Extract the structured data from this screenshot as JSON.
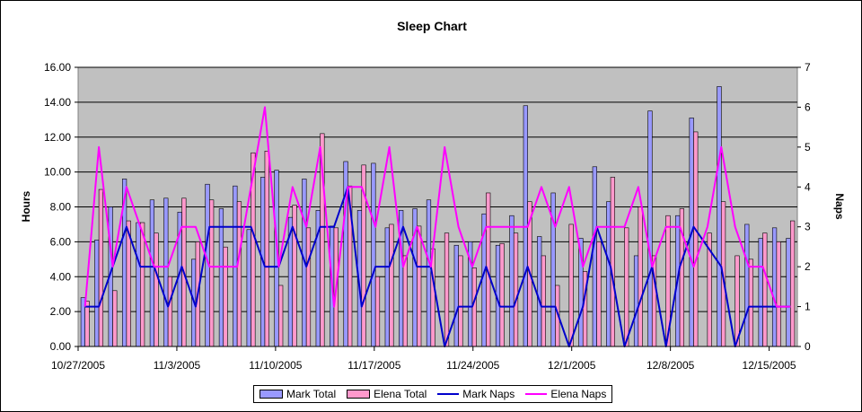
{
  "chart_data": {
    "type": "bar",
    "title": "Sleep Chart",
    "ylabel": "Hours",
    "y2label": "Naps",
    "ylim": [
      0,
      16
    ],
    "y2lim": [
      0,
      7
    ],
    "y_ticks": [
      "0.00",
      "2.00",
      "4.00",
      "6.00",
      "8.00",
      "10.00",
      "12.00",
      "14.00",
      "16.00"
    ],
    "y2_ticks": [
      "0",
      "1",
      "2",
      "3",
      "4",
      "5",
      "6",
      "7"
    ],
    "x_start": "10/27/2005",
    "x_end": "12/17/2005",
    "x_ticks": [
      "10/27/2005",
      "11/3/2005",
      "11/10/2005",
      "11/17/2005",
      "11/24/2005",
      "12/1/2005",
      "12/8/2005",
      "12/15/2005"
    ],
    "grid": true,
    "legend_position": "bottom",
    "colors": {
      "plot_bg": "#c0c0c0",
      "mark_total": "#9999ff",
      "elena_total": "#ff99cc",
      "mark_naps": "#0000cc",
      "elena_naps": "#ff00ff"
    },
    "series": [
      {
        "name": "Mark Total",
        "kind": "bar",
        "axis": "left",
        "values": [
          2.8,
          6.1,
          8.0,
          9.6,
          7.1,
          8.4,
          8.5,
          7.7,
          5.0,
          9.3,
          7.9,
          9.2,
          6.7,
          9.7,
          10.1,
          7.4,
          9.6,
          7.8,
          6.9,
          10.6,
          7.8,
          10.5,
          6.8,
          7.8,
          7.9,
          8.4,
          null,
          5.8,
          6.0,
          7.6,
          5.8,
          7.5,
          13.8,
          6.3,
          8.8,
          null,
          6.2,
          10.3,
          8.3,
          null,
          5.2,
          13.5,
          null,
          7.5,
          13.1,
          null,
          14.9,
          null,
          7.0,
          6.2,
          6.8,
          6.2
        ]
      },
      {
        "name": "Elena Total",
        "kind": "bar",
        "axis": "left",
        "values": [
          2.6,
          9.0,
          3.2,
          7.2,
          7.1,
          6.5,
          4.0,
          8.5,
          6.0,
          8.4,
          5.7,
          8.3,
          11.1,
          11.2,
          3.5,
          8.1,
          6.8,
          12.2,
          6.8,
          9.2,
          10.4,
          4.0,
          7.0,
          5.2,
          6.9,
          5.6,
          6.5,
          5.2,
          4.5,
          8.8,
          5.9,
          6.5,
          8.3,
          5.2,
          3.5,
          7.0,
          4.3,
          6.0,
          9.7,
          6.8,
          8.0,
          5.2,
          7.5,
          7.9,
          12.3,
          6.5,
          8.3,
          5.2,
          5.0,
          6.5,
          6.0,
          7.2
        ]
      },
      {
        "name": "Mark Naps",
        "kind": "line",
        "axis": "right",
        "values": [
          1,
          1,
          2,
          3,
          2,
          2,
          1,
          2,
          1,
          3,
          3,
          3,
          3,
          2,
          2,
          3,
          2,
          3,
          3,
          4,
          1,
          2,
          2,
          3,
          2,
          2,
          0,
          1,
          1,
          2,
          1,
          1,
          2,
          1,
          1,
          0,
          1,
          3,
          2,
          0,
          1,
          2,
          0,
          2,
          3,
          null,
          2,
          0,
          1,
          1,
          1,
          1
        ]
      },
      {
        "name": "Elena Naps",
        "kind": "line",
        "axis": "right",
        "values": [
          1,
          5,
          2,
          4,
          3,
          2,
          2,
          3,
          3,
          2,
          2,
          2,
          4,
          6,
          2,
          4,
          3,
          5,
          1,
          4,
          4,
          3,
          5,
          2,
          3,
          2,
          5,
          3,
          2,
          3,
          3,
          3,
          3,
          4,
          3,
          4,
          2,
          3,
          3,
          3,
          4,
          2,
          3,
          3,
          2,
          3,
          5,
          3,
          2,
          2,
          1,
          1
        ]
      }
    ]
  }
}
